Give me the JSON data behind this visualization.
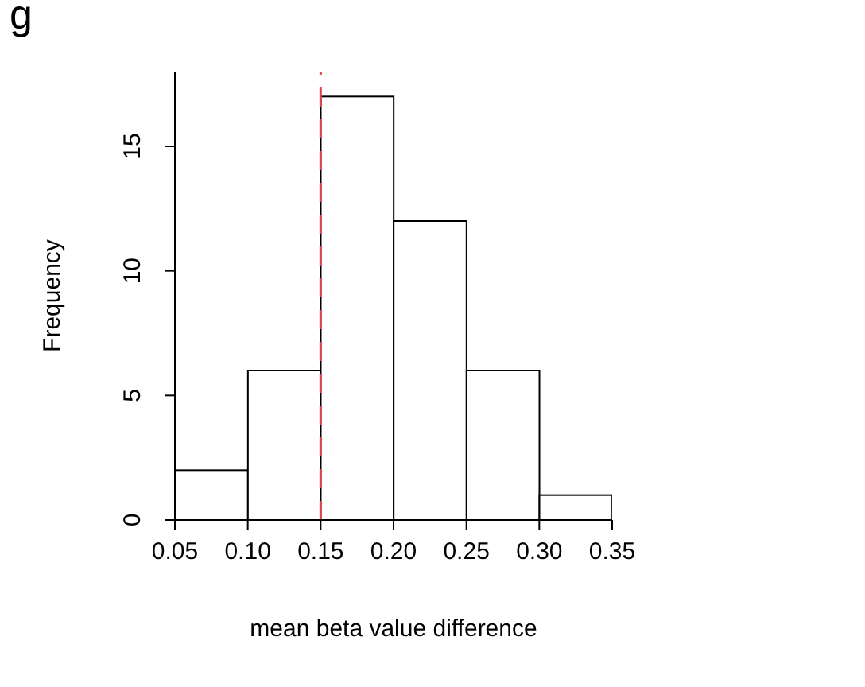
{
  "chart_data": {
    "type": "histogram",
    "xlabel": "mean beta value difference",
    "ylabel": "Frequency",
    "annotations": [
      "g"
    ],
    "bins": [
      0.05,
      0.1,
      0.15,
      0.2,
      0.25,
      0.3,
      0.35
    ],
    "values": [
      2,
      6,
      17,
      12,
      6,
      1
    ],
    "color": "#ffffff",
    "xlim": [
      0.05,
      0.35
    ],
    "xticks": [
      {
        "value": 0.05,
        "label": "0.05"
      },
      {
        "value": 0.1,
        "label": "0.10"
      },
      {
        "value": 0.15,
        "label": "0.15"
      },
      {
        "value": 0.2,
        "label": "0.20"
      },
      {
        "value": 0.25,
        "label": "0.25"
      },
      {
        "value": 0.3,
        "label": "0.30"
      },
      {
        "value": 0.35,
        "label": "0.35"
      }
    ],
    "ylim": [
      0,
      18
    ],
    "yticks": [
      0,
      5,
      10,
      15
    ],
    "ref_lines": [
      {
        "axis": "x",
        "value": 0.15,
        "color": "#e0454f",
        "line_style": "dashed"
      }
    ],
    "grid": false,
    "legend": false
  }
}
